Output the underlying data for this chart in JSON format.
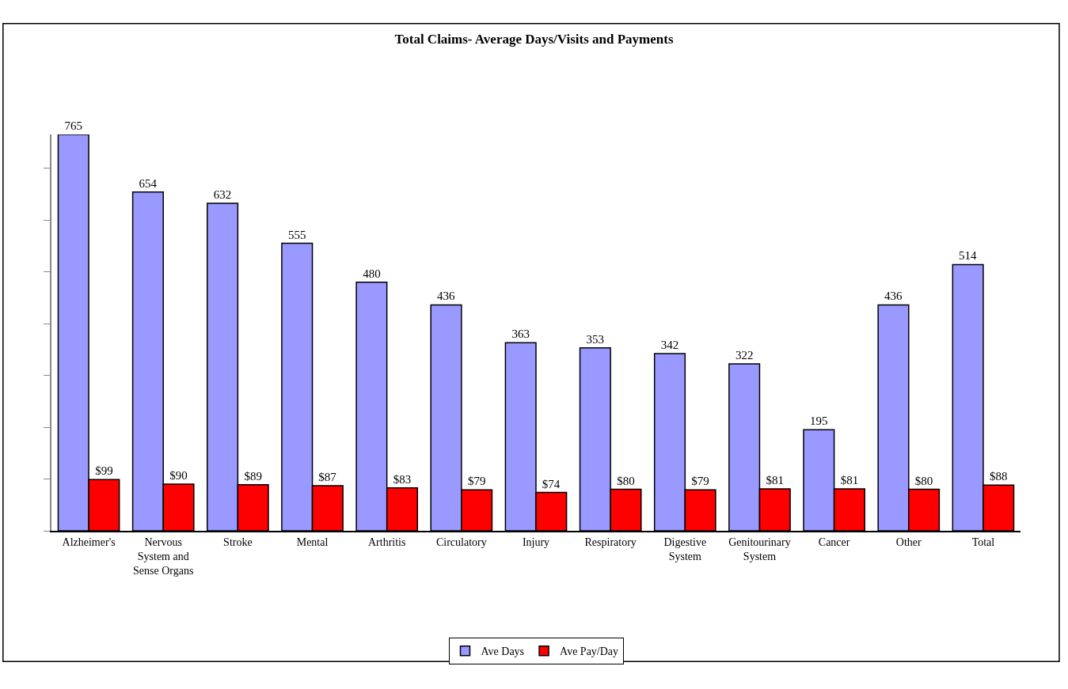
{
  "chart_data": {
    "type": "bar",
    "title": "Total Claims- Average Days/Visits and Payments",
    "categories": [
      "Alzheimer's",
      "Nervous System and Sense Organs",
      "Stroke",
      "Mental",
      "Arthritis",
      "Circulatory",
      "Injury",
      "Respiratory",
      "Digestive System",
      "Genitourinary System",
      "Cancer",
      "Other",
      "Total"
    ],
    "series": [
      {
        "name": "Ave Days",
        "color": "#9999ff",
        "values": [
          765,
          654,
          632,
          555,
          480,
          436,
          363,
          353,
          342,
          322,
          195,
          436,
          514
        ]
      },
      {
        "name": "Ave Pay/Day",
        "color": "#ff0000",
        "values": [
          99,
          90,
          89,
          87,
          83,
          79,
          74,
          80,
          79,
          81,
          81,
          80,
          88
        ],
        "value_labels": [
          "$99",
          "$90",
          "$89",
          "$87",
          "$83",
          "$79",
          "$74",
          "$80",
          "$79",
          "$81",
          "$81",
          "$80",
          "$88"
        ]
      }
    ],
    "data_labels": true,
    "ylim": [
      0,
      765
    ],
    "yticks": [
      {
        "value": 0,
        "label": null
      },
      {
        "value": 100,
        "label": null
      },
      {
        "value": 200,
        "label": null
      },
      {
        "value": 300,
        "label": null
      },
      {
        "value": 400,
        "label": null
      },
      {
        "value": 500,
        "label": null
      },
      {
        "value": 600,
        "label": null
      },
      {
        "value": 700,
        "label": null
      }
    ],
    "tick_labels": "x",
    "legend": "bottom"
  }
}
